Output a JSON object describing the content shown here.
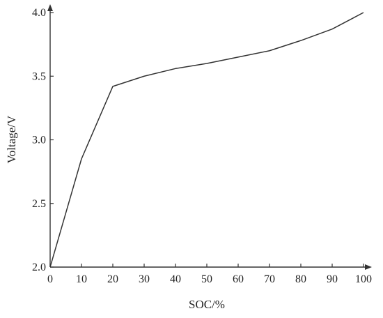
{
  "chart_data": {
    "type": "line",
    "xlabel": "SOC/%",
    "ylabel": "Voltage/V",
    "xlim": [
      0,
      100
    ],
    "ylim": [
      2.0,
      4.0
    ],
    "x_ticks": [
      0,
      10,
      20,
      30,
      40,
      50,
      60,
      70,
      80,
      90,
      100
    ],
    "y_ticks": [
      2.0,
      2.5,
      3.0,
      3.5,
      4.0
    ],
    "x_tick_labels": [
      "0",
      "10",
      "20",
      "30",
      "40",
      "50",
      "60",
      "70",
      "80",
      "90",
      "100"
    ],
    "y_tick_labels": [
      "2.0",
      "2.5",
      "3.0",
      "3.5",
      "4.0"
    ],
    "grid": false,
    "line_color": "#333333",
    "series": [
      {
        "x": [
          0,
          10,
          20,
          30,
          40,
          50,
          60,
          70,
          80,
          90,
          100
        ],
        "y": [
          2.0,
          2.85,
          3.42,
          3.5,
          3.56,
          3.6,
          3.65,
          3.7,
          3.78,
          3.87,
          4.0
        ]
      }
    ]
  }
}
